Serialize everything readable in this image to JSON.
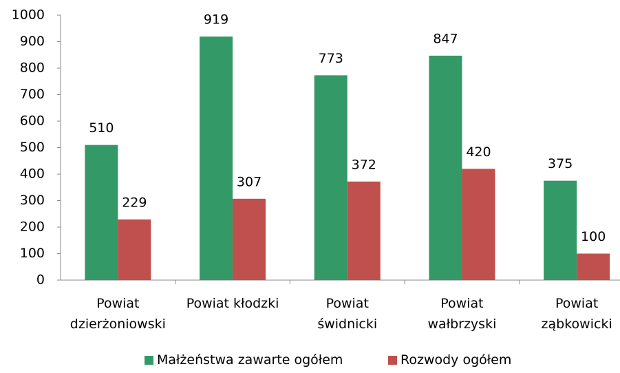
{
  "chart_data": {
    "type": "bar",
    "categories": [
      "Powiat dzierżoniowski",
      "Powiat kłodzki",
      "Powiat świdnicki",
      "Powiat wałbrzyski",
      "Powiat ząbkowicki"
    ],
    "series": [
      {
        "name": "Małżeństwa zawarte ogółem",
        "color": "#339966",
        "values": [
          510,
          919,
          773,
          847,
          375
        ]
      },
      {
        "name": "Rozwody ogółem",
        "color": "#c0504d",
        "values": [
          229,
          307,
          372,
          420,
          100
        ]
      }
    ],
    "ylim": [
      0,
      1000
    ],
    "yticks": [
      0,
      100,
      200,
      300,
      400,
      500,
      600,
      700,
      800,
      900,
      1000
    ],
    "grid": false,
    "legend": "bottom"
  }
}
